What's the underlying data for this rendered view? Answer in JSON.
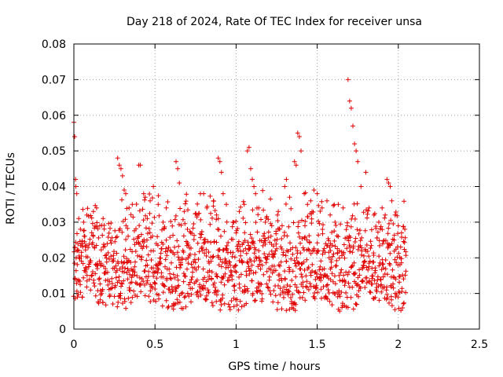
{
  "chart_data": {
    "type": "scatter",
    "title": "Day 218 of 2024, Rate Of TEC Index for receiver unsa",
    "xlabel": "GPS time / hours",
    "ylabel": "ROTI / TECUs",
    "xlim": [
      0,
      2.5
    ],
    "ylim": [
      0,
      0.08
    ],
    "x_ticks": [
      0,
      0.5,
      1,
      1.5,
      2,
      2.5
    ],
    "y_ticks": [
      0,
      0.01,
      0.02,
      0.03,
      0.04,
      0.05,
      0.06,
      0.07,
      0.08
    ],
    "x_tick_labels": [
      "0",
      "0.5",
      "1",
      "1.5",
      "2",
      "2.5"
    ],
    "y_tick_labels": [
      "0",
      "0.01",
      "0.02",
      "0.03",
      "0.04",
      "0.05",
      "0.06",
      "0.07",
      "0.08"
    ],
    "grid": true,
    "marker": "+",
    "color": "#e00000",
    "series": [
      {
        "name": "ROTI",
        "points": [
          [
            0.0,
            0.058
          ],
          [
            0.005,
            0.054
          ],
          [
            0.01,
            0.042
          ],
          [
            0.012,
            0.04
          ],
          [
            0.018,
            0.038
          ],
          [
            0.02,
            0.022
          ],
          [
            0.03,
            0.031
          ],
          [
            0.04,
            0.028
          ],
          [
            0.05,
            0.024
          ],
          [
            0.06,
            0.03
          ],
          [
            0.08,
            0.032
          ],
          [
            0.12,
            0.033
          ],
          [
            0.14,
            0.034
          ],
          [
            0.16,
            0.029
          ],
          [
            0.18,
            0.031
          ],
          [
            0.27,
            0.048
          ],
          [
            0.28,
            0.046
          ],
          [
            0.29,
            0.045
          ],
          [
            0.3,
            0.043
          ],
          [
            0.31,
            0.039
          ],
          [
            0.32,
            0.038
          ],
          [
            0.34,
            0.034
          ],
          [
            0.36,
            0.035
          ],
          [
            0.4,
            0.046
          ],
          [
            0.41,
            0.046
          ],
          [
            0.43,
            0.038
          ],
          [
            0.44,
            0.037
          ],
          [
            0.47,
            0.036
          ],
          [
            0.49,
            0.04
          ],
          [
            0.52,
            0.035
          ],
          [
            0.55,
            0.03
          ],
          [
            0.57,
            0.034
          ],
          [
            0.63,
            0.047
          ],
          [
            0.64,
            0.045
          ],
          [
            0.65,
            0.041
          ],
          [
            0.68,
            0.033
          ],
          [
            0.7,
            0.028
          ],
          [
            0.72,
            0.027
          ],
          [
            0.76,
            0.032
          ],
          [
            0.78,
            0.038
          ],
          [
            0.8,
            0.038
          ],
          [
            0.82,
            0.034
          ],
          [
            0.86,
            0.036
          ],
          [
            0.88,
            0.032
          ],
          [
            0.89,
            0.048
          ],
          [
            0.9,
            0.047
          ],
          [
            0.91,
            0.044
          ],
          [
            0.92,
            0.038
          ],
          [
            0.94,
            0.035
          ],
          [
            0.98,
            0.03
          ],
          [
            1.0,
            0.027
          ],
          [
            1.02,
            0.033
          ],
          [
            1.05,
            0.035
          ],
          [
            1.07,
            0.05
          ],
          [
            1.08,
            0.051
          ],
          [
            1.09,
            0.045
          ],
          [
            1.1,
            0.042
          ],
          [
            1.11,
            0.04
          ],
          [
            1.12,
            0.038
          ],
          [
            1.14,
            0.034
          ],
          [
            1.18,
            0.03
          ],
          [
            1.22,
            0.029
          ],
          [
            1.26,
            0.033
          ],
          [
            1.3,
            0.04
          ],
          [
            1.31,
            0.042
          ],
          [
            1.33,
            0.037
          ],
          [
            1.36,
            0.047
          ],
          [
            1.37,
            0.046
          ],
          [
            1.38,
            0.055
          ],
          [
            1.39,
            0.054
          ],
          [
            1.4,
            0.05
          ],
          [
            1.42,
            0.038
          ],
          [
            1.44,
            0.035
          ],
          [
            1.46,
            0.036
          ],
          [
            1.48,
            0.039
          ],
          [
            1.5,
            0.038
          ],
          [
            1.53,
            0.034
          ],
          [
            1.56,
            0.036
          ],
          [
            1.58,
            0.032
          ],
          [
            1.61,
            0.03
          ],
          [
            1.63,
            0.035
          ],
          [
            1.66,
            0.034
          ],
          [
            1.69,
            0.07
          ],
          [
            1.7,
            0.064
          ],
          [
            1.71,
            0.062
          ],
          [
            1.72,
            0.057
          ],
          [
            1.73,
            0.052
          ],
          [
            1.74,
            0.05
          ],
          [
            1.75,
            0.047
          ],
          [
            1.77,
            0.04
          ],
          [
            1.8,
            0.044
          ],
          [
            1.82,
            0.034
          ],
          [
            1.85,
            0.032
          ],
          [
            1.88,
            0.03
          ],
          [
            1.9,
            0.034
          ],
          [
            1.93,
            0.042
          ],
          [
            1.94,
            0.041
          ],
          [
            1.95,
            0.04
          ],
          [
            1.96,
            0.036
          ],
          [
            1.98,
            0.032
          ],
          [
            2.0,
            0.029
          ],
          [
            2.02,
            0.027
          ],
          [
            2.04,
            0.028
          ]
        ],
        "band": {
          "x_range": [
            0.0,
            2.05
          ],
          "y_core_range": [
            0.006,
            0.025
          ],
          "count": 1400
        }
      }
    ]
  }
}
